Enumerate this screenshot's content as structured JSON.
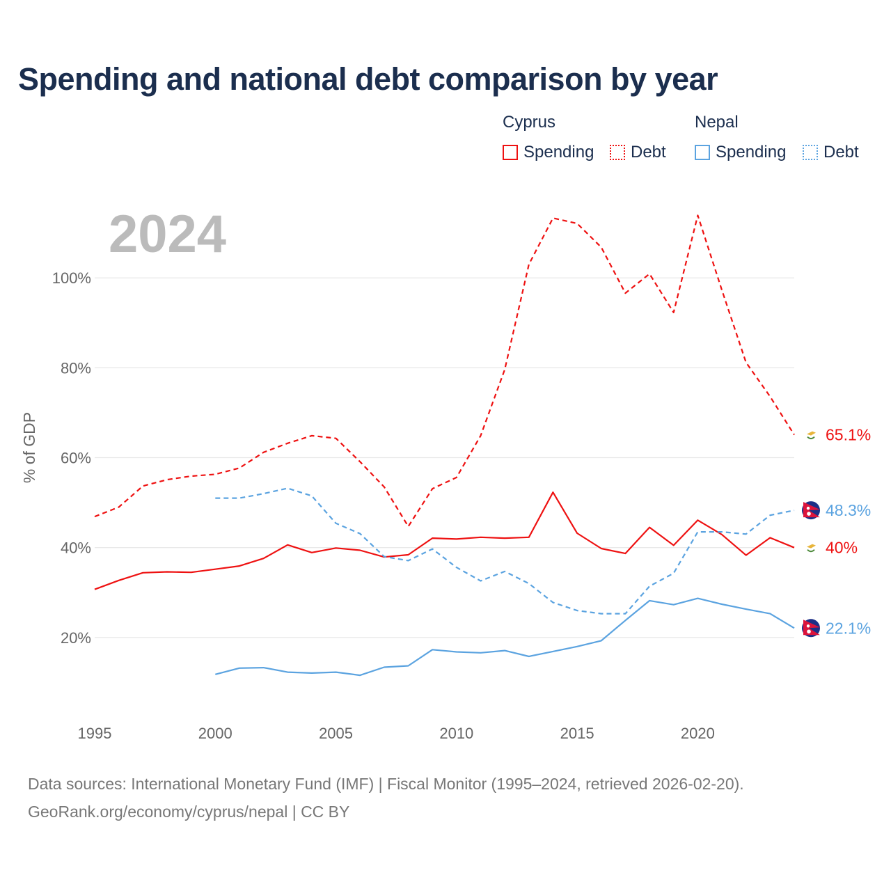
{
  "title": "Spending and national debt comparison by year",
  "legend": {
    "groups": [
      {
        "name": "Cyprus",
        "items": [
          {
            "label": "Spending",
            "style": "solid"
          },
          {
            "label": "Debt",
            "style": "dashed"
          }
        ],
        "color": "#ee1111"
      },
      {
        "name": "Nepal",
        "items": [
          {
            "label": "Spending",
            "style": "solid"
          },
          {
            "label": "Debt",
            "style": "dashed"
          }
        ],
        "color": "#5ba3e0"
      }
    ]
  },
  "year_watermark": "2024",
  "source": {
    "line1": "Data sources: International Monetary Fund (IMF) | Fiscal Monitor (1995–2024, retrieved 2026-02-20).",
    "line2": "GeoRank.org/economy/cyprus/nepal | CC BY"
  },
  "colors": {
    "cyprus": "#ee1111",
    "nepal": "#5ba3e0",
    "grid": "#e6e6e6",
    "axis_text": "#666666",
    "watermark": "#bbbbbb"
  },
  "chart_data": {
    "type": "line",
    "ylabel": "% of GDP",
    "xlabel": "",
    "xlim": [
      1995,
      2024
    ],
    "ylim": [
      0,
      120
    ],
    "x_ticks": [
      1995,
      2000,
      2005,
      2010,
      2015,
      2020
    ],
    "y_ticks": [
      20,
      40,
      60,
      80,
      100
    ],
    "y_tick_labels": [
      "20%",
      "40%",
      "60%",
      "80%",
      "100%"
    ],
    "series": [
      {
        "name": "Cyprus Debt",
        "country": "Cyprus",
        "metric": "Debt",
        "style": "dashed",
        "color": "#ee1111",
        "end_label": "65.1%",
        "points": [
          [
            1995,
            46.9
          ],
          [
            1996,
            49
          ],
          [
            1997,
            53.7
          ],
          [
            1998,
            55.1
          ],
          [
            1999,
            55.9
          ],
          [
            2000,
            56.3
          ],
          [
            2001,
            57.7
          ],
          [
            2002,
            61.2
          ],
          [
            2003,
            63.2
          ],
          [
            2004,
            64.9
          ],
          [
            2005,
            64.3
          ],
          [
            2006,
            59.1
          ],
          [
            2007,
            53.5
          ],
          [
            2008,
            44.7
          ],
          [
            2009,
            53.1
          ],
          [
            2010,
            55.6
          ],
          [
            2011,
            64.9
          ],
          [
            2012,
            79.6
          ],
          [
            2013,
            103
          ],
          [
            2014,
            113.3
          ],
          [
            2015,
            112.1
          ],
          [
            2016,
            106.8
          ],
          [
            2017,
            96.6
          ],
          [
            2018,
            100.9
          ],
          [
            2019,
            92.3
          ],
          [
            2020,
            113.9
          ],
          [
            2021,
            97.3
          ],
          [
            2022,
            81.2
          ],
          [
            2023,
            73.6
          ],
          [
            2024,
            65.1
          ]
        ]
      },
      {
        "name": "Cyprus Spending",
        "country": "Cyprus",
        "metric": "Spending",
        "style": "solid",
        "color": "#ee1111",
        "end_label": "40%",
        "points": [
          [
            1995,
            30.7
          ],
          [
            1996,
            32.7
          ],
          [
            1997,
            34.4
          ],
          [
            1998,
            34.6
          ],
          [
            1999,
            34.5
          ],
          [
            2000,
            35.2
          ],
          [
            2001,
            35.9
          ],
          [
            2002,
            37.6
          ],
          [
            2003,
            40.6
          ],
          [
            2004,
            38.9
          ],
          [
            2005,
            39.9
          ],
          [
            2006,
            39.4
          ],
          [
            2007,
            37.9
          ],
          [
            2008,
            38.4
          ],
          [
            2009,
            42.1
          ],
          [
            2010,
            41.9
          ],
          [
            2011,
            42.3
          ],
          [
            2012,
            42.1
          ],
          [
            2013,
            42.3
          ],
          [
            2014,
            52.3
          ],
          [
            2015,
            43.2
          ],
          [
            2016,
            39.8
          ],
          [
            2017,
            38.7
          ],
          [
            2018,
            44.5
          ],
          [
            2019,
            40.5
          ],
          [
            2020,
            46.1
          ],
          [
            2021,
            42.9
          ],
          [
            2022,
            38.3
          ],
          [
            2023,
            42.2
          ],
          [
            2024,
            40.0
          ]
        ]
      },
      {
        "name": "Nepal Debt",
        "country": "Nepal",
        "metric": "Debt",
        "style": "dashed",
        "color": "#5ba3e0",
        "end_label": "48.3%",
        "points": [
          [
            2000,
            51
          ],
          [
            2001,
            51
          ],
          [
            2002,
            52
          ],
          [
            2003,
            53.2
          ],
          [
            2004,
            51.5
          ],
          [
            2005,
            45.4
          ],
          [
            2006,
            43.1
          ],
          [
            2007,
            38
          ],
          [
            2008,
            37.1
          ],
          [
            2009,
            39.7
          ],
          [
            2010,
            35.6
          ],
          [
            2011,
            32.6
          ],
          [
            2012,
            34.7
          ],
          [
            2013,
            32
          ],
          [
            2014,
            27.8
          ],
          [
            2015,
            26
          ],
          [
            2016,
            25.3
          ],
          [
            2017,
            25.3
          ],
          [
            2018,
            31.4
          ],
          [
            2019,
            34.3
          ],
          [
            2020,
            43.5
          ],
          [
            2021,
            43.5
          ],
          [
            2022,
            43
          ],
          [
            2023,
            47.2
          ],
          [
            2024,
            48.3
          ]
        ]
      },
      {
        "name": "Nepal Spending",
        "country": "Nepal",
        "metric": "Spending",
        "style": "solid",
        "color": "#5ba3e0",
        "end_label": "22.1%",
        "points": [
          [
            2000,
            11.8
          ],
          [
            2001,
            13.2
          ],
          [
            2002,
            13.3
          ],
          [
            2003,
            12.3
          ],
          [
            2004,
            12.1
          ],
          [
            2005,
            12.3
          ],
          [
            2006,
            11.6
          ],
          [
            2007,
            13.4
          ],
          [
            2008,
            13.7
          ],
          [
            2009,
            17.3
          ],
          [
            2010,
            16.8
          ],
          [
            2011,
            16.6
          ],
          [
            2012,
            17.1
          ],
          [
            2013,
            15.8
          ],
          [
            2014,
            16.9
          ],
          [
            2015,
            18
          ],
          [
            2016,
            19.3
          ],
          [
            2017,
            23.8
          ],
          [
            2018,
            28.2
          ],
          [
            2019,
            27.3
          ],
          [
            2020,
            28.7
          ],
          [
            2021,
            27.4
          ],
          [
            2022,
            26.3
          ],
          [
            2023,
            25.3
          ],
          [
            2024,
            22.1
          ]
        ]
      }
    ]
  }
}
